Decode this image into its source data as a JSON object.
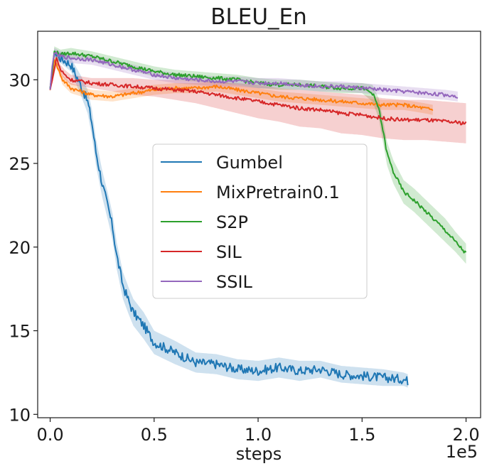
{
  "chart_data": {
    "type": "line",
    "title": "BLEU_En",
    "xlabel": "steps",
    "ylabel": "",
    "x_offset_label": "1e5",
    "xlim": [
      -0.06,
      2.07
    ],
    "ylim": [
      9.8,
      32.9
    ],
    "xticks": [
      0.0,
      0.5,
      1.0,
      1.5,
      2.0
    ],
    "xtick_labels": [
      "0.0",
      "0.5",
      "1.0",
      "1.5",
      "2.0"
    ],
    "yticks": [
      10,
      15,
      20,
      25,
      30
    ],
    "ytick_labels": [
      "10",
      "15",
      "20",
      "25",
      "30"
    ],
    "grid": false,
    "legend_position": "center",
    "series": [
      {
        "name": "Gumbel",
        "color": "#1f77b4",
        "x": [
          0.0,
          0.02,
          0.05,
          0.1,
          0.15,
          0.18,
          0.2,
          0.22,
          0.25,
          0.28,
          0.3,
          0.32,
          0.35,
          0.38,
          0.4,
          0.45,
          0.5,
          0.55,
          0.6,
          0.7,
          0.8,
          0.9,
          1.0,
          1.1,
          1.2,
          1.3,
          1.4,
          1.5,
          1.6,
          1.7,
          1.72
        ],
        "y": [
          29.4,
          31.6,
          31.3,
          30.9,
          29.6,
          28.7,
          27.5,
          25.7,
          23.8,
          22.3,
          21.2,
          19.5,
          17.7,
          16.7,
          16.1,
          15.3,
          14.3,
          14.0,
          13.7,
          13.1,
          13.0,
          12.7,
          12.6,
          12.8,
          12.6,
          12.7,
          12.4,
          12.3,
          12.2,
          12.1,
          12.0
        ],
        "band": [
          0.1,
          0.2,
          0.3,
          0.4,
          0.6,
          0.7,
          0.8,
          0.8,
          0.8,
          0.8,
          0.8,
          0.8,
          0.8,
          0.8,
          0.8,
          0.8,
          0.7,
          0.7,
          0.7,
          0.6,
          0.6,
          0.6,
          0.6,
          0.6,
          0.6,
          0.5,
          0.5,
          0.5,
          0.5,
          0.4,
          0.4
        ]
      },
      {
        "name": "MixPretrain0.1",
        "color": "#ff7f0e",
        "x": [
          0.0,
          0.02,
          0.04,
          0.06,
          0.1,
          0.2,
          0.3,
          0.4,
          0.5,
          0.6,
          0.7,
          0.8,
          0.9,
          1.0,
          1.1,
          1.2,
          1.3,
          1.4,
          1.5,
          1.6,
          1.7,
          1.75,
          1.8,
          1.84
        ],
        "y": [
          29.4,
          31.2,
          30.6,
          30.0,
          29.5,
          29.1,
          29.0,
          29.2,
          29.4,
          29.5,
          29.5,
          29.6,
          29.4,
          29.2,
          29.0,
          28.9,
          28.8,
          28.7,
          28.6,
          28.5,
          28.5,
          28.4,
          28.3,
          28.2
        ],
        "band": [
          0.1,
          0.2,
          0.2,
          0.3,
          0.3,
          0.3,
          0.3,
          0.3,
          0.3,
          0.3,
          0.3,
          0.3,
          0.3,
          0.3,
          0.3,
          0.3,
          0.3,
          0.3,
          0.3,
          0.3,
          0.3,
          0.3,
          0.3,
          0.3
        ]
      },
      {
        "name": "S2P",
        "color": "#2ca02c",
        "x": [
          0.0,
          0.01,
          0.02,
          0.05,
          0.1,
          0.2,
          0.3,
          0.4,
          0.5,
          0.6,
          0.7,
          0.8,
          0.9,
          1.0,
          1.1,
          1.2,
          1.3,
          1.4,
          1.5,
          1.55,
          1.58,
          1.6,
          1.62,
          1.65,
          1.7,
          1.75,
          1.8,
          1.85,
          1.9,
          1.95,
          2.0
        ],
        "y": [
          29.5,
          30.5,
          31.7,
          31.5,
          31.6,
          31.4,
          31.1,
          30.8,
          30.5,
          30.3,
          30.2,
          30.1,
          30.0,
          29.8,
          29.7,
          29.7,
          29.6,
          29.5,
          29.5,
          29.2,
          28.3,
          27.0,
          25.6,
          24.5,
          23.3,
          22.8,
          22.2,
          21.6,
          21.0,
          20.3,
          19.6
        ],
        "band": [
          0.1,
          0.2,
          0.3,
          0.3,
          0.3,
          0.3,
          0.3,
          0.3,
          0.3,
          0.3,
          0.3,
          0.3,
          0.3,
          0.3,
          0.3,
          0.3,
          0.3,
          0.3,
          0.3,
          0.5,
          0.6,
          0.7,
          0.7,
          0.7,
          0.7,
          0.7,
          0.7,
          0.7,
          0.7,
          0.6,
          0.6
        ]
      },
      {
        "name": "SIL",
        "color": "#d62728",
        "x": [
          0.0,
          0.01,
          0.02,
          0.03,
          0.05,
          0.07,
          0.1,
          0.2,
          0.3,
          0.4,
          0.5,
          0.6,
          0.7,
          0.8,
          0.9,
          1.0,
          1.1,
          1.2,
          1.3,
          1.4,
          1.5,
          1.6,
          1.7,
          1.8,
          1.9,
          2.0
        ],
        "y": [
          29.4,
          30.0,
          30.6,
          31.3,
          30.6,
          30.3,
          30.0,
          29.8,
          29.7,
          29.6,
          29.5,
          29.4,
          29.3,
          29.1,
          28.9,
          28.7,
          28.5,
          28.3,
          28.2,
          28.0,
          27.9,
          27.7,
          27.6,
          27.6,
          27.5,
          27.4
        ],
        "band": [
          0.1,
          0.2,
          0.3,
          0.4,
          0.3,
          0.3,
          0.3,
          0.3,
          0.4,
          0.5,
          0.5,
          0.6,
          0.7,
          0.8,
          0.9,
          1.0,
          1.0,
          1.1,
          1.1,
          1.2,
          1.2,
          1.2,
          1.2,
          1.2,
          1.2,
          1.2
        ]
      },
      {
        "name": "SSIL",
        "color": "#9467bd",
        "x": [
          0.0,
          0.01,
          0.02,
          0.05,
          0.1,
          0.2,
          0.3,
          0.4,
          0.5,
          0.6,
          0.7,
          0.8,
          0.9,
          1.0,
          1.1,
          1.2,
          1.3,
          1.4,
          1.5,
          1.6,
          1.7,
          1.8,
          1.9,
          1.96
        ],
        "y": [
          29.4,
          30.8,
          31.6,
          31.4,
          31.3,
          31.2,
          30.9,
          30.6,
          30.3,
          30.1,
          30.0,
          29.9,
          29.9,
          29.8,
          29.8,
          29.7,
          29.6,
          29.6,
          29.5,
          29.4,
          29.3,
          29.2,
          29.1,
          29.0
        ],
        "band": [
          0.1,
          0.2,
          0.3,
          0.3,
          0.3,
          0.3,
          0.3,
          0.3,
          0.3,
          0.3,
          0.3,
          0.3,
          0.3,
          0.3,
          0.3,
          0.3,
          0.3,
          0.3,
          0.3,
          0.3,
          0.3,
          0.3,
          0.3,
          0.3
        ]
      }
    ]
  }
}
